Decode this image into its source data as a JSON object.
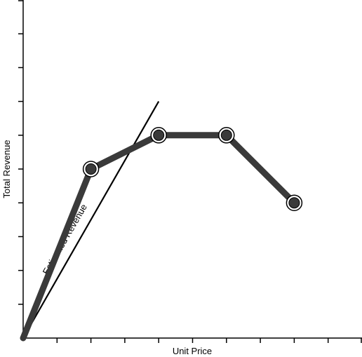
{
  "chart_data": {
    "type": "line",
    "title": "",
    "xlabel": "Unit Price",
    "ylabel": "Total Revenue",
    "xlim": [
      0,
      10
    ],
    "ylim": [
      0,
      10
    ],
    "x_ticks": [
      0,
      1,
      2,
      3,
      4,
      5,
      6,
      7,
      8,
      9,
      10
    ],
    "y_ticks": [
      0,
      1,
      2,
      3,
      4,
      5,
      6,
      7,
      8,
      9,
      10
    ],
    "tick_labels_shown": false,
    "grid": false,
    "legend": "none",
    "series": [
      {
        "x": [
          0,
          2,
          4,
          6,
          8
        ],
        "y": [
          0,
          5,
          6,
          6,
          4
        ],
        "color": "#3a3a3a",
        "marker": "circle"
      }
    ],
    "annotations": [
      {
        "text": "Estimated Revenue",
        "line_x": [
          0,
          4
        ],
        "line_y": [
          0,
          7
        ],
        "color": "#000000"
      }
    ]
  }
}
